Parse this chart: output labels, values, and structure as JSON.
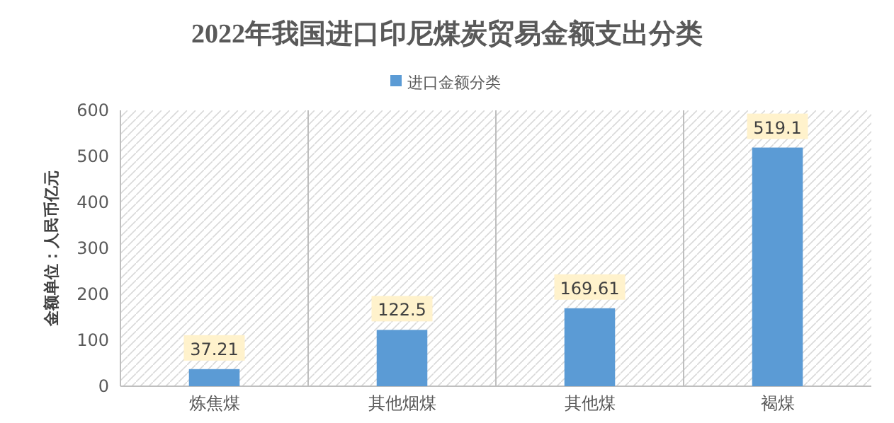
{
  "chart_data": {
    "type": "bar",
    "title": "2022年我国进口印尼煤炭贸易金额支出分类",
    "ylabel": "金额单位：人民币亿元",
    "categories": [
      "炼焦煤",
      "其他烟煤",
      "其他煤",
      "褐煤"
    ],
    "series": [
      {
        "name": "进口金额分类",
        "color": "#5b9bd5",
        "values": [
          37.21,
          122.5,
          169.61,
          519.1
        ]
      }
    ],
    "ylim": [
      0,
      600
    ],
    "yticks": [
      0,
      100,
      200,
      300,
      400,
      500,
      600
    ],
    "grid": "x",
    "legend": "top",
    "data_labels": true
  }
}
